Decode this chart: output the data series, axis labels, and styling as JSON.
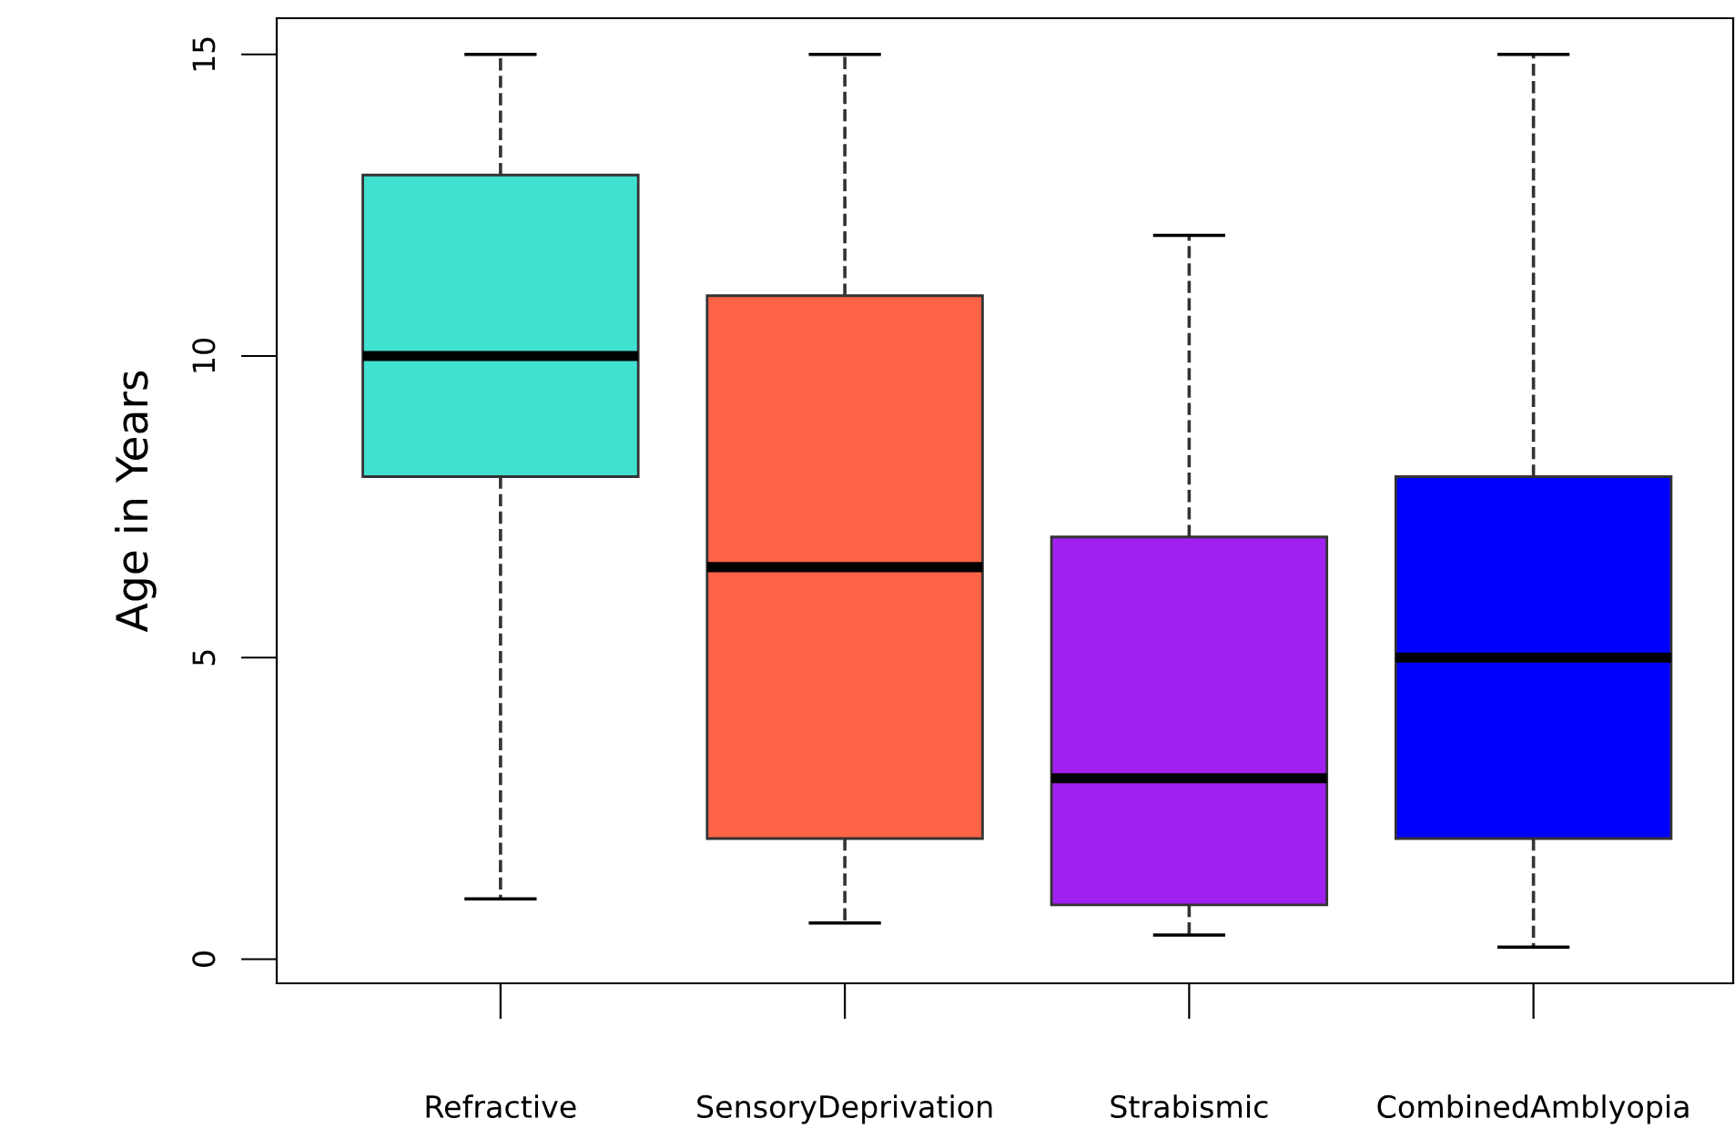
{
  "chart_data": {
    "type": "box",
    "ylabel": "Age in Years",
    "categories": [
      "Refractive",
      "SensoryDeprivation",
      "Strabismic",
      "CombinedAmblyopia"
    ],
    "colors": [
      "#40e0d0",
      "#ff6347",
      "#a020f0",
      "#0000ff"
    ],
    "boxes": [
      {
        "low": 1,
        "q1": 8,
        "median": 10,
        "q3": 13,
        "high": 15
      },
      {
        "low": 0.6,
        "q1": 2,
        "median": 6.5,
        "q3": 11,
        "high": 15
      },
      {
        "low": 0.4,
        "q1": 0.9,
        "median": 3,
        "q3": 7,
        "high": 12
      },
      {
        "low": 0.2,
        "q1": 2,
        "median": 5,
        "q3": 8,
        "high": 15
      }
    ],
    "ylim": [
      -0.4,
      15.6
    ],
    "yticks": [
      0,
      5,
      10,
      15
    ],
    "grid": false
  }
}
